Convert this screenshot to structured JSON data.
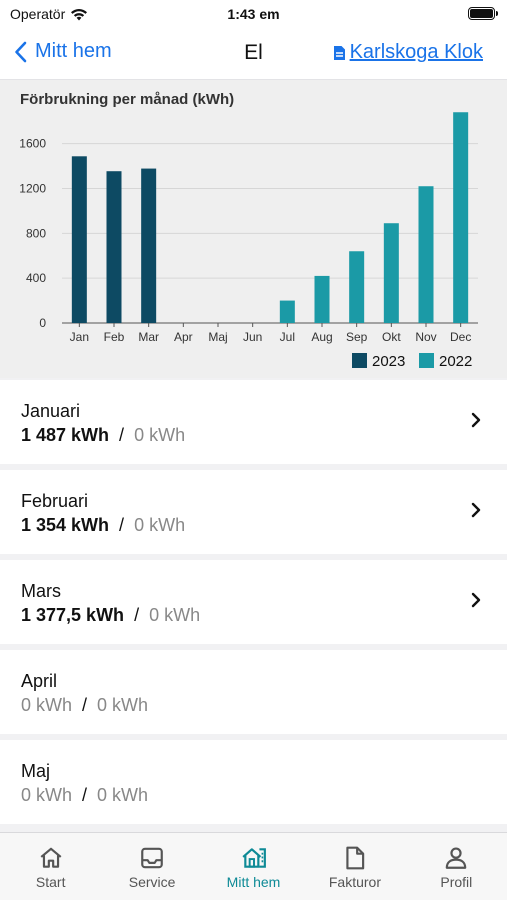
{
  "status_bar": {
    "carrier": "Operatör",
    "time": "1:43 em"
  },
  "nav": {
    "back_label": "Mitt hem",
    "title": "El",
    "link_label": "Karlskoga Klok"
  },
  "chart_data": {
    "type": "bar",
    "title": "Förbrukning per månad (kWh)",
    "categories": [
      "Jan",
      "Feb",
      "Mar",
      "Apr",
      "Maj",
      "Jun",
      "Jul",
      "Aug",
      "Sep",
      "Okt",
      "Nov",
      "Dec"
    ],
    "series": [
      {
        "name": "2023",
        "color": "#0d4a63",
        "values": [
          1487,
          1354,
          1377.5,
          null,
          null,
          null,
          null,
          null,
          null,
          null,
          null,
          null
        ]
      },
      {
        "name": "2022",
        "color": "#1b9aa6",
        "values": [
          null,
          null,
          null,
          null,
          null,
          null,
          200,
          420,
          640,
          890,
          1220,
          1880
        ]
      }
    ],
    "yticks": [
      0,
      400,
      800,
      1200,
      1600
    ],
    "ylim": [
      0,
      1900
    ],
    "legend": "bottom-right"
  },
  "months": [
    {
      "name": "Januari",
      "v2023": "1 487 kWh",
      "v2022": "0 kWh",
      "separator": "/",
      "has_detail": true,
      "zero": false
    },
    {
      "name": "Februari",
      "v2023": "1 354 kWh",
      "v2022": "0 kWh",
      "separator": "/",
      "has_detail": true,
      "zero": false
    },
    {
      "name": "Mars",
      "v2023": "1 377,5 kWh",
      "v2022": "0 kWh",
      "separator": "/",
      "has_detail": true,
      "zero": false
    },
    {
      "name": "April",
      "v2023": "0 kWh",
      "v2022": "0 kWh",
      "separator": "/",
      "has_detail": false,
      "zero": true
    },
    {
      "name": "Maj",
      "v2023": "0 kWh",
      "v2022": "0 kWh",
      "separator": "/",
      "has_detail": false,
      "zero": true
    }
  ],
  "tabs": [
    {
      "label": "Start",
      "icon": "home-icon",
      "active": false
    },
    {
      "label": "Service",
      "icon": "inbox-icon",
      "active": false
    },
    {
      "label": "Mitt hem",
      "icon": "house-meter-icon",
      "active": true
    },
    {
      "label": "Fakturor",
      "icon": "document-icon",
      "active": false
    },
    {
      "label": "Profil",
      "icon": "person-icon",
      "active": false
    }
  ],
  "colors": {
    "accent": "#1a73e8",
    "active_tab": "#0e8a96",
    "series_2023": "#0d4a63",
    "series_2022": "#1b9aa6"
  }
}
